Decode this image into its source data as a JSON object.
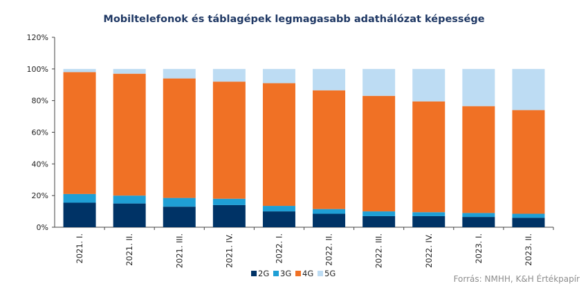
{
  "chart_data": {
    "type": "bar",
    "stacked": true,
    "title": "Mobiltelefonok és táblagépek legmagasabb adathálózat képessége",
    "xlabel": "",
    "ylabel": "",
    "ylim": [
      0,
      120
    ],
    "yticks": [
      "0%",
      "20%",
      "40%",
      "60%",
      "80%",
      "100%",
      "120%"
    ],
    "grid": false,
    "legend": "bottom",
    "categories": [
      "2021. I.",
      "2021. II.",
      "2021. III.",
      "2021. IV.",
      "2022. I.",
      "2022. II.",
      "2022. III.",
      "2022. IV.",
      "2023. I.",
      "2023. II."
    ],
    "series": [
      {
        "name": "2G",
        "color": "#003366",
        "values": [
          15.5,
          15,
          13,
          14,
          10,
          8.5,
          7,
          7,
          6.5,
          6
        ]
      },
      {
        "name": "3G",
        "color": "#1f9fd5",
        "values": [
          5.5,
          5,
          5.5,
          4,
          3.5,
          3,
          3,
          2.5,
          2.5,
          2.5
        ]
      },
      {
        "name": "4G",
        "color": "#f07125",
        "values": [
          77,
          77,
          75.5,
          74,
          77.5,
          75,
          73,
          70,
          67.5,
          65.5
        ]
      },
      {
        "name": "5G",
        "color": "#bddcf3",
        "values": [
          2,
          3,
          6,
          8,
          9,
          13.5,
          17,
          20.5,
          23.5,
          26
        ]
      }
    ]
  },
  "source": "Forrás: NMHH, K&H Értékpapír"
}
